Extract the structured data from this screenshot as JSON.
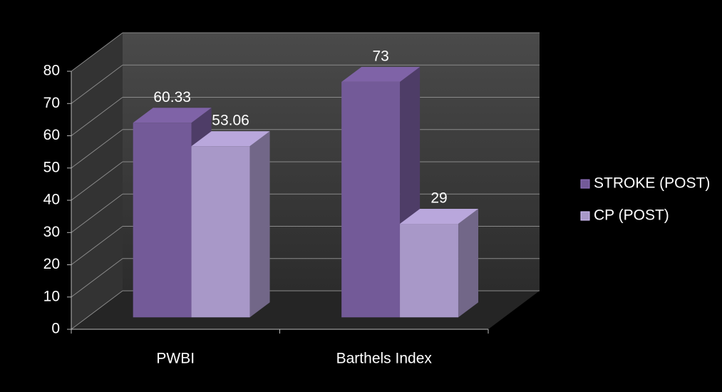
{
  "chart_data": {
    "type": "bar3d",
    "categories": [
      "PWBI",
      "Barthels Index"
    ],
    "series": [
      {
        "name": "STROKE (POST)",
        "color": "#735a98",
        "values": [
          60.33,
          73
        ]
      },
      {
        "name": "CP (POST)",
        "color": "#a898c8",
        "values": [
          53.06,
          29
        ]
      }
    ],
    "ylim": [
      0,
      80
    ],
    "yticks": [
      0,
      10,
      20,
      30,
      40,
      50,
      60,
      70,
      80
    ],
    "grid": true,
    "legend": "right"
  }
}
